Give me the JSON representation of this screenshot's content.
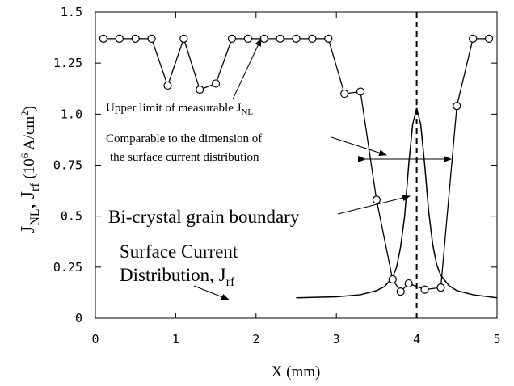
{
  "chart_data": {
    "type": "line",
    "xlabel": "X (mm)",
    "ylabel_parts": [
      "J",
      "NL",
      ", J",
      "rf",
      " (10",
      "6",
      " A/cm",
      "2",
      ")"
    ],
    "xlim": [
      0,
      5
    ],
    "ylim": [
      0,
      1.5
    ],
    "x_ticks": [
      0,
      1,
      2,
      3,
      4,
      5
    ],
    "y_ticks": [
      0,
      0.25,
      0.5,
      0.75,
      1.0,
      1.25,
      1.5
    ],
    "y_tick_labels": [
      "0",
      "0.25",
      "0.5",
      "0.75",
      "1.0",
      "1.25",
      "1.5"
    ],
    "grain_boundary_x": 4.0,
    "series": [
      {
        "key": "jnl",
        "marker": "open-circle",
        "x": [
          0.1,
          0.3,
          0.5,
          0.7,
          0.9,
          1.1,
          1.3,
          1.5,
          1.7,
          1.9,
          2.1,
          2.3,
          2.5,
          2.7,
          2.9,
          3.1,
          3.3,
          3.5,
          3.7,
          3.8,
          3.9,
          4.1,
          4.3,
          4.5,
          4.7,
          4.9
        ],
        "y": [
          1.37,
          1.37,
          1.37,
          1.37,
          1.14,
          1.37,
          1.12,
          1.15,
          1.37,
          1.37,
          1.37,
          1.37,
          1.37,
          1.37,
          1.37,
          1.1,
          1.11,
          0.58,
          0.19,
          0.13,
          0.17,
          0.14,
          0.15,
          1.04,
          1.37,
          1.37
        ]
      },
      {
        "key": "jrf",
        "marker": "none",
        "x": [
          2.5,
          3.0,
          3.3,
          3.5,
          3.6,
          3.7,
          3.75,
          3.8,
          3.85,
          3.9,
          3.95,
          4.0,
          4.05,
          4.1,
          4.15,
          4.2,
          4.25,
          4.3,
          4.4,
          4.5,
          4.7,
          5.0
        ],
        "y": [
          0.1,
          0.105,
          0.115,
          0.135,
          0.155,
          0.2,
          0.25,
          0.35,
          0.5,
          0.75,
          0.95,
          1.03,
          0.95,
          0.75,
          0.52,
          0.36,
          0.26,
          0.21,
          0.16,
          0.135,
          0.115,
          0.1
        ]
      }
    ],
    "annotations": {
      "upper_limit_main": "Upper limit of measurable J",
      "upper_limit_sub": "NL",
      "comparable_line1": "Comparable to the dimension of",
      "comparable_line2": "the surface current distribution",
      "grain_boundary": "Bi-crystal grain boundary",
      "surface_line1": "Surface Current",
      "surface_line2_main": "Distribution, J",
      "surface_line2_sub": "rf"
    }
  }
}
